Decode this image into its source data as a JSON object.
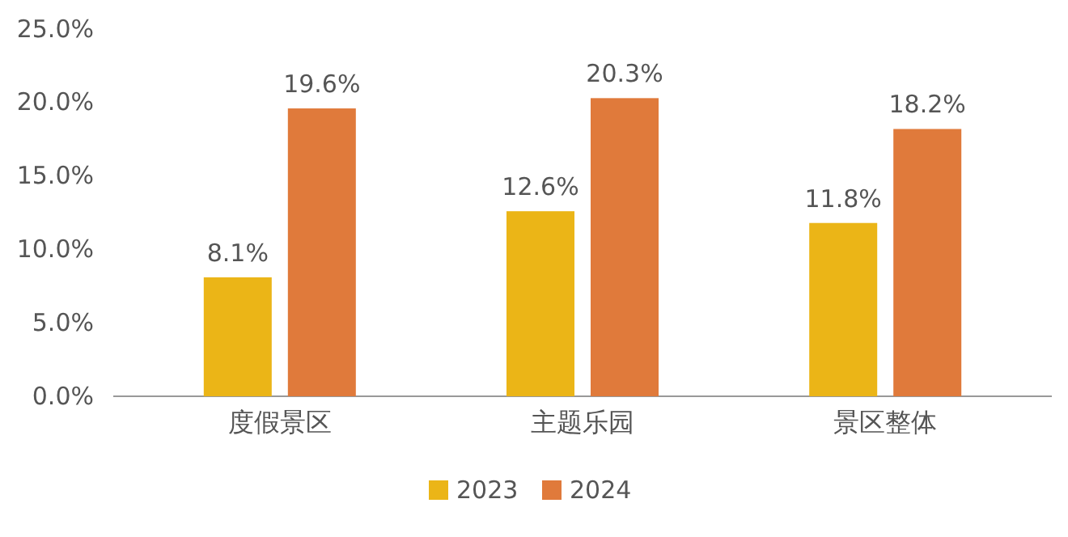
{
  "chart_data": {
    "type": "bar",
    "categories": [
      "度假景区",
      "主题乐园",
      "景区整体"
    ],
    "series": [
      {
        "name": "2023",
        "color": "#ebb517",
        "values": [
          8.1,
          12.6,
          11.8
        ],
        "value_labels": [
          "8.1%",
          "12.6%",
          "11.8%"
        ]
      },
      {
        "name": "2024",
        "color": "#e07a3b",
        "values": [
          19.6,
          20.3,
          18.2
        ],
        "value_labels": [
          "19.6%",
          "20.3%",
          "18.2%"
        ]
      }
    ],
    "ylim": [
      0,
      25
    ],
    "yticks": [
      {
        "value": 0,
        "label": "0.0%"
      },
      {
        "value": 5,
        "label": "5.0%"
      },
      {
        "value": 10,
        "label": "10.0%"
      },
      {
        "value": 15,
        "label": "15.0%"
      },
      {
        "value": 20,
        "label": "20.0%"
      },
      {
        "value": 25,
        "label": "25.0%"
      }
    ],
    "grid": false,
    "legend": "bottom"
  }
}
